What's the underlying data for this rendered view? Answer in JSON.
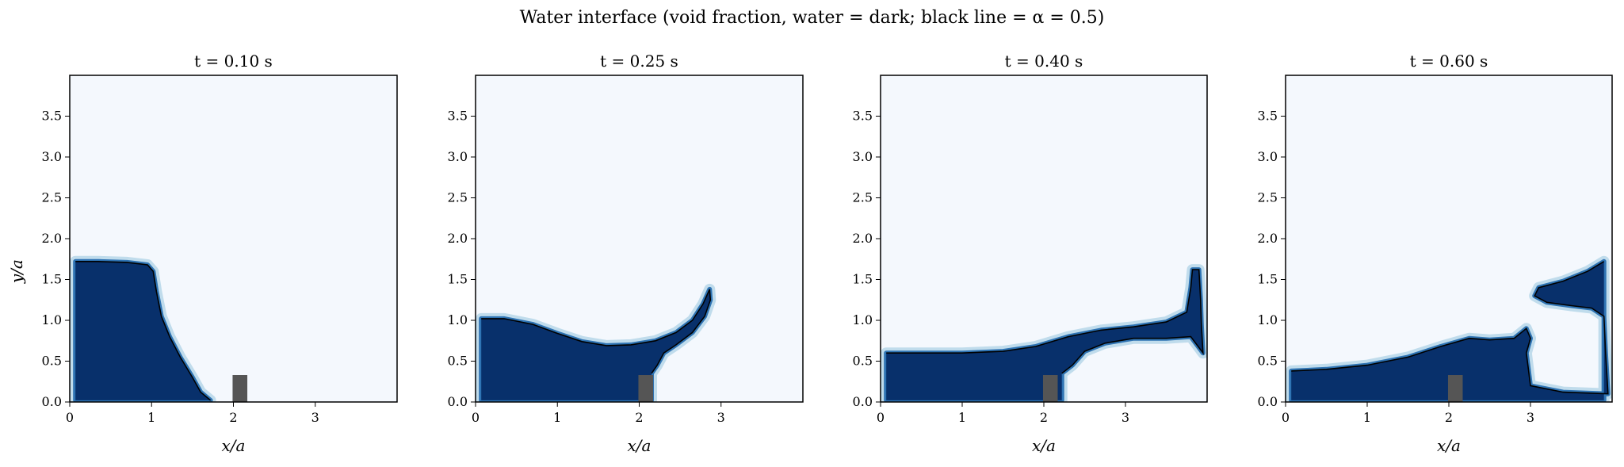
{
  "figure": {
    "suptitle": "Water interface (void fraction, water = dark; black line = α = 0.5)"
  },
  "colors": {
    "water": "#08306b",
    "mid": "#2f74b4",
    "light": "#9ecae1",
    "air": "#f4f8fd",
    "contour": "#000000",
    "obstacle": "#555555"
  },
  "chart_data": [
    {
      "type": "heatmap",
      "title": "t = 0.10 s",
      "xlabel": "x/a",
      "ylabel": "y/a",
      "xlim": [
        0,
        4
      ],
      "ylim": [
        0,
        4
      ],
      "xticks": [
        "0",
        "1",
        "2",
        "3"
      ],
      "yticks": [
        "0.0",
        "0.5",
        "1.0",
        "1.5",
        "2.0",
        "2.5",
        "3.0",
        "3.5"
      ],
      "obstacle": {
        "x": [
          1.99,
          2.17
        ],
        "y": [
          0,
          0.33
        ]
      },
      "interface": [
        [
          0.07,
          1.72
        ],
        [
          0.35,
          1.72
        ],
        [
          0.7,
          1.71
        ],
        [
          0.95,
          1.68
        ],
        [
          1.02,
          1.6
        ],
        [
          1.06,
          1.35
        ],
        [
          1.12,
          1.05
        ],
        [
          1.22,
          0.8
        ],
        [
          1.35,
          0.55
        ],
        [
          1.5,
          0.3
        ],
        [
          1.6,
          0.12
        ],
        [
          1.72,
          0.02
        ]
      ]
    },
    {
      "type": "heatmap",
      "title": "t = 0.25 s",
      "xlabel": "x/a",
      "ylabel": "",
      "xlim": [
        0,
        4
      ],
      "ylim": [
        0,
        4
      ],
      "xticks": [
        "0",
        "1",
        "2",
        "3"
      ],
      "yticks": [
        "0.0",
        "0.5",
        "1.0",
        "1.5",
        "2.0",
        "2.5",
        "3.0",
        "3.5"
      ],
      "obstacle": {
        "x": [
          1.99,
          2.17
        ],
        "y": [
          0,
          0.33
        ]
      },
      "interface": [
        [
          0.07,
          1.02
        ],
        [
          0.35,
          1.02
        ],
        [
          0.7,
          0.95
        ],
        [
          1.0,
          0.84
        ],
        [
          1.3,
          0.74
        ],
        [
          1.6,
          0.69
        ],
        [
          1.9,
          0.7
        ],
        [
          2.2,
          0.75
        ],
        [
          2.45,
          0.85
        ],
        [
          2.65,
          1.0
        ],
        [
          2.78,
          1.2
        ],
        [
          2.86,
          1.38
        ],
        [
          2.87,
          1.25
        ],
        [
          2.8,
          1.05
        ],
        [
          2.65,
          0.85
        ],
        [
          2.45,
          0.7
        ],
        [
          2.3,
          0.6
        ],
        [
          2.22,
          0.45
        ],
        [
          2.15,
          0.35
        ]
      ]
    },
    {
      "type": "heatmap",
      "title": "t = 0.40 s",
      "xlabel": "x/a",
      "ylabel": "",
      "xlim": [
        0,
        4
      ],
      "ylim": [
        0,
        4
      ],
      "xticks": [
        "0",
        "1",
        "2",
        "3"
      ],
      "yticks": [
        "0.0",
        "0.5",
        "1.0",
        "1.5",
        "2.0",
        "2.5",
        "3.0",
        "3.5"
      ],
      "obstacle": {
        "x": [
          1.99,
          2.17
        ],
        "y": [
          0,
          0.33
        ]
      },
      "interface": [
        [
          0.07,
          0.6
        ],
        [
          0.5,
          0.6
        ],
        [
          1.0,
          0.6
        ],
        [
          1.5,
          0.62
        ],
        [
          1.9,
          0.68
        ],
        [
          2.3,
          0.8
        ],
        [
          2.7,
          0.88
        ],
        [
          3.1,
          0.92
        ],
        [
          3.5,
          0.98
        ],
        [
          3.75,
          1.1
        ],
        [
          3.8,
          1.4
        ],
        [
          3.82,
          1.62
        ],
        [
          3.9,
          1.62
        ],
        [
          3.92,
          1.25
        ],
        [
          3.93,
          0.95
        ],
        [
          3.95,
          0.6
        ],
        [
          3.8,
          0.8
        ],
        [
          3.5,
          0.78
        ],
        [
          3.1,
          0.78
        ],
        [
          2.75,
          0.72
        ],
        [
          2.5,
          0.62
        ],
        [
          2.35,
          0.45
        ],
        [
          2.22,
          0.35
        ]
      ]
    },
    {
      "type": "heatmap",
      "title": "t = 0.60 s",
      "xlabel": "x/a",
      "ylabel": "",
      "xlim": [
        0,
        4
      ],
      "ylim": [
        0,
        4
      ],
      "xticks": [
        "0",
        "1",
        "2",
        "3"
      ],
      "yticks": [
        "0.0",
        "0.5",
        "1.0",
        "1.5",
        "2.0",
        "2.5",
        "3.0",
        "3.5"
      ],
      "obstacle": {
        "x": [
          1.99,
          2.17
        ],
        "y": [
          0,
          0.33
        ]
      },
      "interface": [
        [
          0.07,
          0.38
        ],
        [
          0.5,
          0.4
        ],
        [
          1.0,
          0.45
        ],
        [
          1.5,
          0.55
        ],
        [
          1.9,
          0.68
        ],
        [
          2.25,
          0.78
        ],
        [
          2.5,
          0.76
        ],
        [
          2.8,
          0.78
        ],
        [
          2.95,
          0.9
        ],
        [
          3.0,
          0.78
        ],
        [
          2.95,
          0.6
        ],
        [
          3.0,
          0.2
        ],
        [
          3.4,
          0.12
        ],
        [
          3.95,
          0.1
        ],
        [
          3.92,
          0.6
        ],
        [
          3.9,
          1.05
        ],
        [
          3.75,
          1.15
        ],
        [
          3.5,
          1.18
        ],
        [
          3.2,
          1.22
        ],
        [
          3.05,
          1.3
        ],
        [
          3.1,
          1.4
        ],
        [
          3.4,
          1.48
        ],
        [
          3.7,
          1.6
        ],
        [
          3.9,
          1.72
        ]
      ]
    }
  ]
}
